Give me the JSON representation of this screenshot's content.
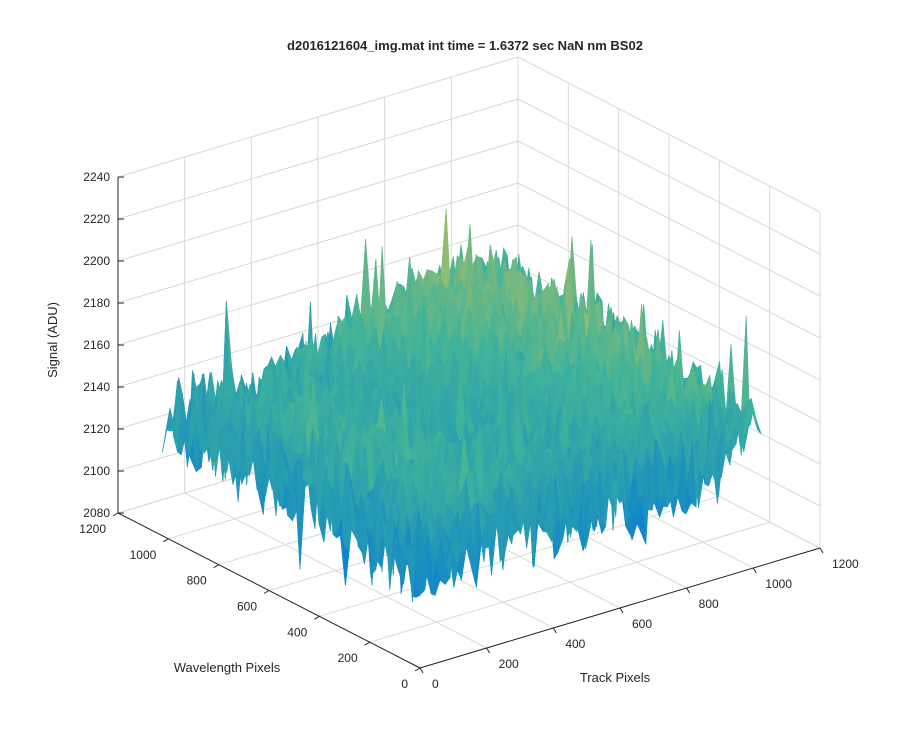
{
  "chart_data": {
    "type": "surface",
    "title": "d2016121604_img.mat int time = 1.6372 sec  NaN nm BS02",
    "xlabel": "Track Pixels",
    "ylabel": "Wavelength Pixels",
    "zlabel": "Signal (ADU)",
    "xlim": [
      0,
      1200
    ],
    "ylim": [
      0,
      1200
    ],
    "zlim": [
      2080,
      2240
    ],
    "xticks": [
      "0",
      "200",
      "400",
      "600",
      "800",
      "1000",
      "1200"
    ],
    "yticks": [
      "0",
      "200",
      "400",
      "600",
      "800",
      "1000",
      "1200"
    ],
    "zticks": [
      "2080",
      "2100",
      "2120",
      "2140",
      "2160",
      "2180",
      "2200",
      "2220",
      "2240"
    ],
    "data_extent": {
      "x": [
        0,
        1024
      ],
      "y": [
        0,
        1024
      ]
    },
    "signal_mean": 2150,
    "signal_range": [
      2090,
      2225
    ],
    "colormap": "parula",
    "colors": {
      "low": "#0a7fd0",
      "mid": "#3fb39a",
      "high": "#e3c34a"
    },
    "grid": true
  }
}
